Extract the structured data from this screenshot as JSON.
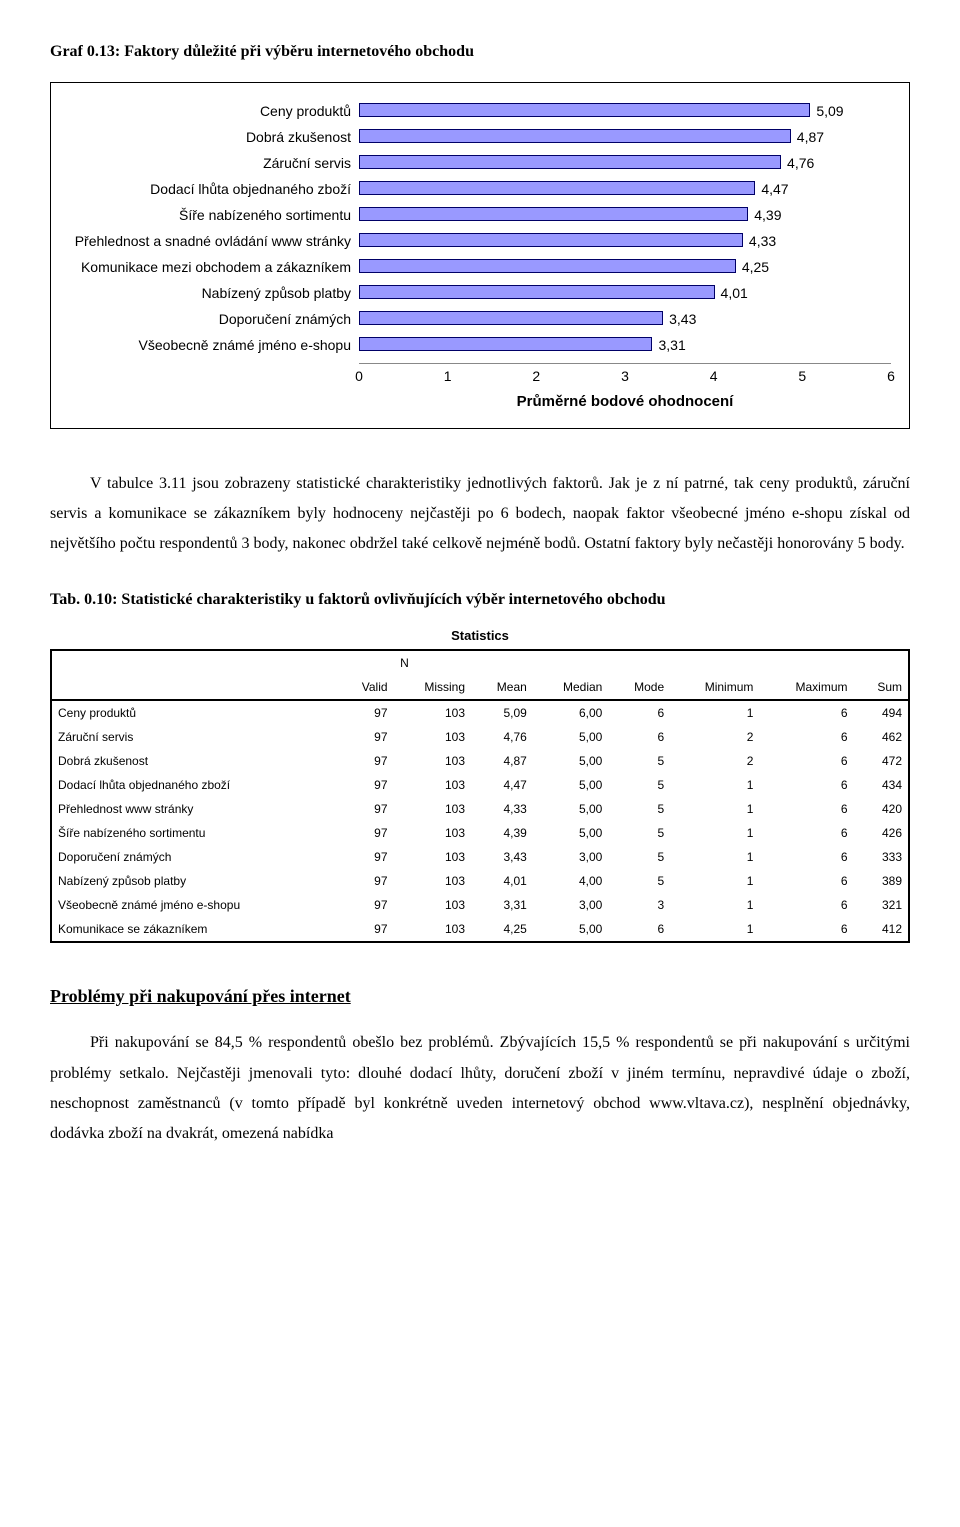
{
  "chart_heading": "Graf 0.13: Faktory důležité při výběru internetového obchodu",
  "chart": {
    "type": "bar-horizontal",
    "bar_color": "#9999ff",
    "bar_border": "#000066",
    "background_color": "#ffffff",
    "xlim": [
      0,
      6
    ],
    "xtick_step": 1,
    "xticks": [
      "0",
      "1",
      "2",
      "3",
      "4",
      "5",
      "6"
    ],
    "axis_title": "Průměrné bodové ohodnocení",
    "items": [
      {
        "label": "Ceny produktů",
        "value": 5.09,
        "value_txt": "5,09"
      },
      {
        "label": "Dobrá zkušenost",
        "value": 4.87,
        "value_txt": "4,87"
      },
      {
        "label": "Záruční servis",
        "value": 4.76,
        "value_txt": "4,76"
      },
      {
        "label": "Dodací lhůta objednaného zboží",
        "value": 4.47,
        "value_txt": "4,47"
      },
      {
        "label": "Šíře nabízeného sortimentu",
        "value": 4.39,
        "value_txt": "4,39"
      },
      {
        "label": "Přehlednost a snadné ovládání www stránky",
        "value": 4.33,
        "value_txt": "4,33"
      },
      {
        "label": "Komunikace mezi obchodem a zákazníkem",
        "value": 4.25,
        "value_txt": "4,25"
      },
      {
        "label": "Nabízený způsob platby",
        "value": 4.01,
        "value_txt": "4,01"
      },
      {
        "label": "Doporučení známých",
        "value": 3.43,
        "value_txt": "3,43"
      },
      {
        "label": "Všeobecně známé jméno e-shopu",
        "value": 3.31,
        "value_txt": "3,31"
      }
    ]
  },
  "para1": "V tabulce 3.11 jsou zobrazeny statistické charakteristiky jednotlivých faktorů. Jak je z ní patrné, tak ceny produktů, záruční servis a komunikace se zákazníkem byly hodnoceny nejčastěji po 6 bodech, naopak faktor všeobecné jméno e-shopu získal od největšího počtu respondentů 3 body, nakonec obdržel také celkově nejméně bodů. Ostatní faktory byly nečastěji honorovány 5 body.",
  "table_heading": "Tab. 0.10: Statistické charakteristiky u faktorů ovlivňujících výběr internetového obchodu",
  "stats": {
    "title": "Statistics",
    "n_group": "N",
    "columns": [
      "Valid",
      "Missing",
      "Mean",
      "Median",
      "Mode",
      "Minimum",
      "Maximum",
      "Sum"
    ],
    "rows": [
      {
        "label": "Ceny produktů",
        "cells": [
          "97",
          "103",
          "5,09",
          "6,00",
          "6",
          "1",
          "6",
          "494"
        ]
      },
      {
        "label": "Záruční servis",
        "cells": [
          "97",
          "103",
          "4,76",
          "5,00",
          "6",
          "2",
          "6",
          "462"
        ]
      },
      {
        "label": "Dobrá zkušenost",
        "cells": [
          "97",
          "103",
          "4,87",
          "5,00",
          "5",
          "2",
          "6",
          "472"
        ]
      },
      {
        "label": "Dodací lhůta objednaného zboží",
        "cells": [
          "97",
          "103",
          "4,47",
          "5,00",
          "5",
          "1",
          "6",
          "434"
        ]
      },
      {
        "label": "Přehlednost www stránky",
        "cells": [
          "97",
          "103",
          "4,33",
          "5,00",
          "5",
          "1",
          "6",
          "420"
        ]
      },
      {
        "label": "Šíře nabízeného sortimentu",
        "cells": [
          "97",
          "103",
          "4,39",
          "5,00",
          "5",
          "1",
          "6",
          "426"
        ]
      },
      {
        "label": "Doporučení známých",
        "cells": [
          "97",
          "103",
          "3,43",
          "3,00",
          "5",
          "1",
          "6",
          "333"
        ]
      },
      {
        "label": "Nabízený způsob platby",
        "cells": [
          "97",
          "103",
          "4,01",
          "4,00",
          "5",
          "1",
          "6",
          "389"
        ]
      },
      {
        "label": "Všeobecně známé jméno e-shopu",
        "cells": [
          "97",
          "103",
          "3,31",
          "3,00",
          "3",
          "1",
          "6",
          "321"
        ]
      },
      {
        "label": "Komunikace se zákazníkem",
        "cells": [
          "97",
          "103",
          "4,25",
          "5,00",
          "6",
          "1",
          "6",
          "412"
        ]
      }
    ]
  },
  "section_heading": "Problémy při nakupování přes internet",
  "para2": "Při nakupování se 84,5 % respondentů obešlo bez problémů. Zbývajících 15,5 % respondentů se při nakupování s určitými problémy setkalo. Nejčastěji jmenovali tyto: dlouhé dodací lhůty, doručení zboží v jiném termínu, nepravdivé údaje o zboží, neschopnost zaměstnanců (v tomto případě byl konkrétně uveden internetový obchod www.vltava.cz), nesplnění objednávky, dodávka zboží na dvakrát, omezená nabídka"
}
